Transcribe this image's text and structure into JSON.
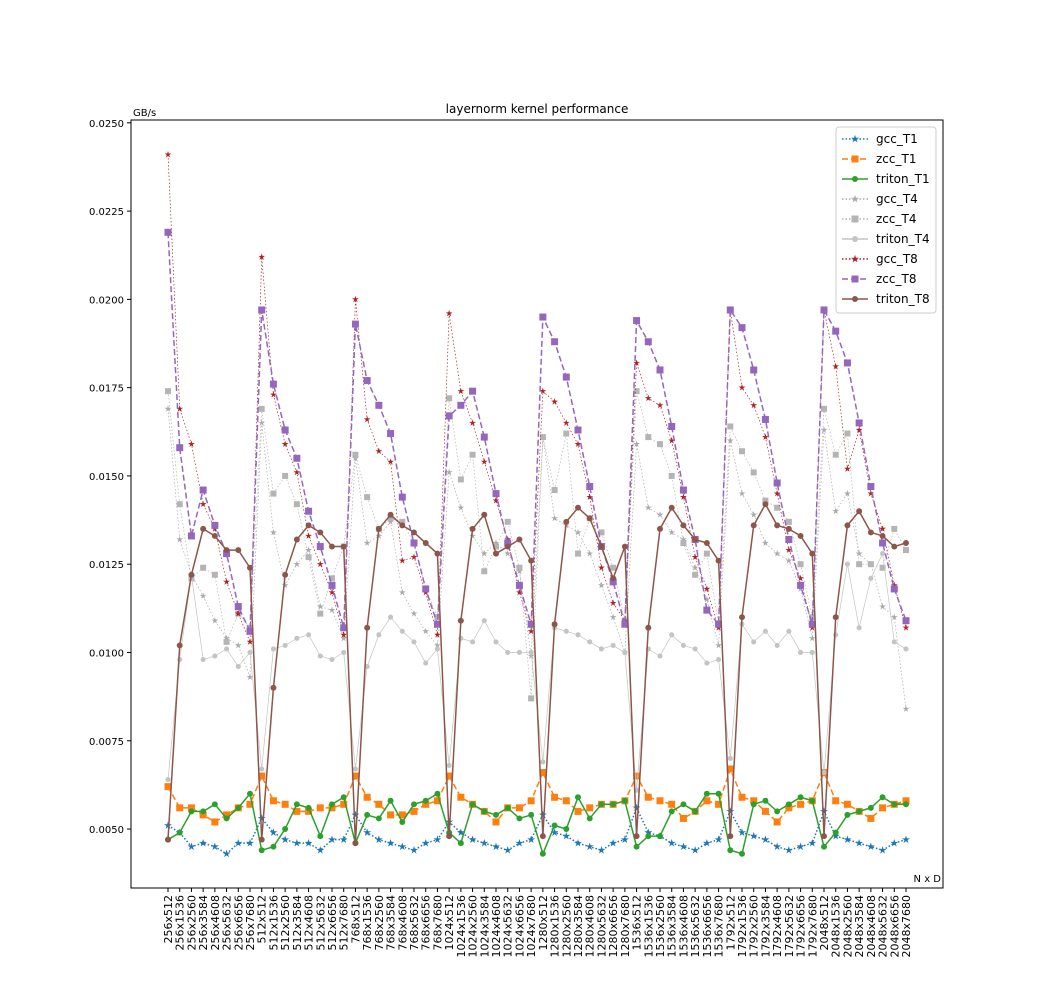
{
  "chart_data": {
    "type": "line",
    "title": "layernorm kernel performance",
    "ylabel": "GB/s",
    "xlabel": "N x D",
    "categories": [
      "256x512",
      "256x1536",
      "256x2560",
      "256x3584",
      "256x4608",
      "256x5632",
      "256x6656",
      "256x7680",
      "512x512",
      "512x1536",
      "512x2560",
      "512x3584",
      "512x4608",
      "512x5632",
      "512x6656",
      "512x7680",
      "768x512",
      "768x1536",
      "768x2560",
      "768x3584",
      "768x4608",
      "768x5632",
      "768x6656",
      "768x7680",
      "1024x512",
      "1024x1536",
      "1024x2560",
      "1024x3584",
      "1024x4608",
      "1024x5632",
      "1024x6656",
      "1024x7680",
      "1280x512",
      "1280x1536",
      "1280x2560",
      "1280x3584",
      "1280x4608",
      "1280x5632",
      "1280x6656",
      "1280x7680",
      "1536x512",
      "1536x1536",
      "1536x2560",
      "1536x3584",
      "1536x4608",
      "1536x5632",
      "1536x6656",
      "1536x7680",
      "1792x512",
      "1792x1536",
      "1792x2560",
      "1792x3584",
      "1792x4608",
      "1792x5632",
      "1792x6656",
      "1792x7680",
      "2048x512",
      "2048x1536",
      "2048x2560",
      "2048x3584",
      "2048x4608",
      "2048x5632",
      "2048x6656",
      "2048x7680"
    ],
    "ylim": [
      0.00333,
      0.02508
    ],
    "yticks": [
      {
        "value": 0.005,
        "label": "0.0050"
      },
      {
        "value": 0.0075,
        "label": "0.0075"
      },
      {
        "value": 0.01,
        "label": "0.0100"
      },
      {
        "value": 0.0125,
        "label": "0.0125"
      },
      {
        "value": 0.015,
        "label": "0.0150"
      },
      {
        "value": 0.0175,
        "label": "0.0175"
      },
      {
        "value": 0.02,
        "label": "0.0200"
      },
      {
        "value": 0.0225,
        "label": "0.0225"
      },
      {
        "value": 0.025,
        "label": "0.0250"
      }
    ],
    "legend": "upper right",
    "series": [
      {
        "name": "gcc_T1",
        "color": "#1f77b4",
        "linestyle": "dotted",
        "marker": "star",
        "values": [
          0.0051,
          0.0049,
          0.0045,
          0.0046,
          0.0045,
          0.0043,
          0.0046,
          0.0046,
          0.0053,
          0.0049,
          0.0047,
          0.0046,
          0.0046,
          0.0044,
          0.0047,
          0.0047,
          0.0054,
          0.0049,
          0.0047,
          0.0046,
          0.0045,
          0.0044,
          0.0046,
          0.0047,
          0.0052,
          0.0049,
          0.0047,
          0.0046,
          0.0045,
          0.0044,
          0.0046,
          0.0047,
          0.0054,
          0.0049,
          0.0048,
          0.0046,
          0.0045,
          0.0044,
          0.0046,
          0.0047,
          0.0056,
          0.0049,
          0.0048,
          0.0046,
          0.0045,
          0.0044,
          0.0046,
          0.0047,
          0.0055,
          0.0049,
          0.0048,
          0.0047,
          0.0045,
          0.0044,
          0.0045,
          0.0046,
          0.0055,
          0.0048,
          0.0047,
          0.0046,
          0.0045,
          0.0044,
          0.0046,
          0.0047
        ]
      },
      {
        "name": "zcc_T1",
        "color": "#ff7f0e",
        "linestyle": "dashed",
        "marker": "square",
        "values": [
          0.0062,
          0.0056,
          0.0056,
          0.0054,
          0.0052,
          0.0054,
          0.0056,
          0.0057,
          0.0065,
          0.0058,
          0.0057,
          0.0055,
          0.0055,
          0.0056,
          0.0056,
          0.0057,
          0.0065,
          0.0059,
          0.0057,
          0.0054,
          0.0054,
          0.0055,
          0.0057,
          0.0058,
          0.0065,
          0.0059,
          0.0057,
          0.0055,
          0.0052,
          0.0056,
          0.0056,
          0.0058,
          0.0066,
          0.0059,
          0.0058,
          0.0055,
          0.0056,
          0.0057,
          0.0057,
          0.0058,
          0.0065,
          0.0059,
          0.0058,
          0.0057,
          0.0053,
          0.0055,
          0.0058,
          0.0057,
          0.0067,
          0.0059,
          0.0058,
          0.0055,
          0.0052,
          0.0056,
          0.0057,
          0.0058,
          0.0066,
          0.0058,
          0.0057,
          0.0055,
          0.0053,
          0.0056,
          0.0057,
          0.0058
        ]
      },
      {
        "name": "triton_T1",
        "color": "#2ca02c",
        "linestyle": "solid",
        "marker": "circle",
        "values": [
          0.0047,
          0.0049,
          0.0055,
          0.0055,
          0.0057,
          0.0053,
          0.0056,
          0.006,
          0.0044,
          0.0045,
          0.005,
          0.0057,
          0.0056,
          0.0048,
          0.0057,
          0.0059,
          0.0046,
          0.0054,
          0.0053,
          0.0058,
          0.0052,
          0.0057,
          0.0058,
          0.006,
          0.0049,
          0.0046,
          0.0057,
          0.0055,
          0.0054,
          0.0056,
          0.0053,
          0.0054,
          0.0043,
          0.0051,
          0.005,
          0.0059,
          0.0053,
          0.0057,
          0.0057,
          0.0058,
          0.0045,
          0.0048,
          0.0048,
          0.0055,
          0.0057,
          0.0055,
          0.006,
          0.006,
          0.0044,
          0.0043,
          0.0057,
          0.0058,
          0.0055,
          0.0057,
          0.0059,
          0.0058,
          0.0045,
          0.0049,
          0.0054,
          0.0055,
          0.0056,
          0.0059,
          0.0057,
          0.0057
        ]
      },
      {
        "name": "gcc_T4",
        "color": "#aaaaaa",
        "linestyle": "dotted",
        "marker": "star",
        "values": [
          0.0169,
          0.0132,
          0.0122,
          0.0116,
          0.0109,
          0.0104,
          0.0102,
          0.0093,
          0.0165,
          0.0134,
          0.0119,
          0.0125,
          0.0129,
          0.0113,
          0.0112,
          0.0104,
          0.0155,
          0.0131,
          0.0133,
          0.0137,
          0.0117,
          0.0111,
          0.0106,
          0.0102,
          0.0151,
          0.0141,
          0.0133,
          0.0128,
          0.0131,
          0.0128,
          0.0123,
          0.0099,
          0.0161,
          0.0138,
          0.0136,
          0.0134,
          0.0128,
          0.0119,
          0.011,
          0.01,
          0.0159,
          0.0141,
          0.0139,
          0.0134,
          0.0132,
          0.0124,
          0.0115,
          0.0102,
          0.016,
          0.0145,
          0.0139,
          0.0131,
          0.0128,
          0.0126,
          0.0118,
          0.0104,
          0.0163,
          0.014,
          0.0145,
          0.0128,
          0.0125,
          0.0113,
          0.011,
          0.0084
        ]
      },
      {
        "name": "zcc_T4",
        "color": "#b4b4b4",
        "linestyle": "dotted",
        "marker": "square",
        "values": [
          0.0174,
          0.0142,
          0.0121,
          0.0124,
          0.0122,
          0.0103,
          0.0111,
          0.0107,
          0.0169,
          0.0145,
          0.015,
          0.0142,
          0.0127,
          0.0111,
          0.0121,
          0.013,
          0.0156,
          0.0144,
          0.0135,
          0.0138,
          0.0137,
          0.0131,
          0.0118,
          0.011,
          0.0172,
          0.0149,
          0.0156,
          0.0123,
          0.013,
          0.0137,
          0.0124,
          0.0087,
          0.0161,
          0.0146,
          0.0162,
          0.0128,
          0.0138,
          0.0134,
          0.0124,
          0.0109,
          0.0174,
          0.0161,
          0.0159,
          0.015,
          0.0131,
          0.0122,
          0.0128,
          0.0108,
          0.0164,
          0.0157,
          0.0151,
          0.0143,
          0.0141,
          0.0137,
          0.0125,
          0.011,
          0.0169,
          0.0156,
          0.0162,
          0.0125,
          0.0125,
          0.0124,
          0.0135,
          0.0129
        ]
      },
      {
        "name": "triton_T4",
        "color": "#c4c4c4",
        "linestyle": "solid",
        "marker": "circle",
        "values": [
          0.0064,
          0.0098,
          0.0122,
          0.0098,
          0.0099,
          0.0101,
          0.0096,
          0.01,
          0.0067,
          0.0101,
          0.0102,
          0.0104,
          0.0105,
          0.0099,
          0.0098,
          0.01,
          0.0067,
          0.0096,
          0.0105,
          0.011,
          0.0106,
          0.0103,
          0.0097,
          0.0101,
          0.0068,
          0.0104,
          0.0103,
          0.0109,
          0.0103,
          0.01,
          0.01,
          0.01,
          0.0069,
          0.0107,
          0.0106,
          0.0105,
          0.0103,
          0.0101,
          0.0102,
          0.01,
          0.0061,
          0.0101,
          0.0099,
          0.0105,
          0.0102,
          0.0101,
          0.0097,
          0.0098,
          0.007,
          0.0108,
          0.0103,
          0.0106,
          0.0102,
          0.0106,
          0.01,
          0.01,
          0.0066,
          0.0105,
          0.0125,
          0.0107,
          0.0121,
          0.0128,
          0.0103,
          0.0101
        ]
      },
      {
        "name": "gcc_T8",
        "color": "#b22222",
        "linestyle": "dotted",
        "marker": "star",
        "values": [
          0.0241,
          0.0169,
          0.0159,
          0.0142,
          0.0135,
          0.012,
          0.0111,
          0.0103,
          0.0212,
          0.0173,
          0.0159,
          0.0151,
          0.0133,
          0.0125,
          0.0117,
          0.0105,
          0.02,
          0.0166,
          0.0157,
          0.0154,
          0.0126,
          0.0127,
          0.0117,
          0.0105,
          0.0196,
          0.0174,
          0.0165,
          0.0154,
          0.0143,
          0.0132,
          0.0117,
          0.0106,
          0.0174,
          0.0171,
          0.0165,
          0.0159,
          0.0144,
          0.0124,
          0.0114,
          0.0109,
          0.0182,
          0.0172,
          0.017,
          0.016,
          0.0144,
          0.0127,
          0.0118,
          0.0107,
          0.0197,
          0.0175,
          0.017,
          0.0161,
          0.0145,
          0.0129,
          0.0121,
          0.0107,
          0.0197,
          0.0181,
          0.0152,
          0.0163,
          0.0145,
          0.0135,
          0.0119,
          0.0107
        ]
      },
      {
        "name": "zcc_T8",
        "color": "#9467bd",
        "linestyle": "dashed",
        "marker": "square",
        "values": [
          0.0219,
          0.0158,
          0.0133,
          0.0146,
          0.0136,
          0.0128,
          0.0113,
          0.0106,
          0.0197,
          0.0176,
          0.0163,
          0.0155,
          0.014,
          0.013,
          0.0119,
          0.0107,
          0.0193,
          0.0177,
          0.017,
          0.0162,
          0.0144,
          0.0131,
          0.0118,
          0.0108,
          0.0167,
          0.017,
          0.0174,
          0.0161,
          0.0145,
          0.0131,
          0.0119,
          0.0108,
          0.0195,
          0.0188,
          0.0178,
          0.0163,
          0.0147,
          0.013,
          0.012,
          0.0108,
          0.0194,
          0.0188,
          0.018,
          0.0164,
          0.0146,
          0.0132,
          0.0112,
          0.0108,
          0.0197,
          0.0192,
          0.018,
          0.0166,
          0.0148,
          0.0132,
          0.0119,
          0.0108,
          0.0197,
          0.0191,
          0.0182,
          0.0165,
          0.0147,
          0.0131,
          0.0118,
          0.0109
        ]
      },
      {
        "name": "triton_T8",
        "color": "#8c564b",
        "linestyle": "solid",
        "marker": "circle",
        "values": [
          0.0047,
          0.0102,
          0.0122,
          0.0135,
          0.0133,
          0.0129,
          0.0129,
          0.0124,
          0.0047,
          0.009,
          0.0122,
          0.0132,
          0.0136,
          0.0134,
          0.013,
          0.013,
          0.0046,
          0.0107,
          0.0135,
          0.0139,
          0.0136,
          0.0134,
          0.0131,
          0.0128,
          0.0048,
          0.0109,
          0.0135,
          0.0139,
          0.0128,
          0.013,
          0.0132,
          0.0126,
          0.0048,
          0.0108,
          0.0137,
          0.0141,
          0.0138,
          0.013,
          0.0121,
          0.013,
          0.0048,
          0.0107,
          0.0135,
          0.0141,
          0.0136,
          0.0132,
          0.0131,
          0.0126,
          0.0048,
          0.011,
          0.0136,
          0.0142,
          0.0136,
          0.0135,
          0.0133,
          0.0128,
          0.0048,
          0.011,
          0.0136,
          0.014,
          0.0134,
          0.0133,
          0.013,
          0.0131
        ]
      }
    ]
  }
}
